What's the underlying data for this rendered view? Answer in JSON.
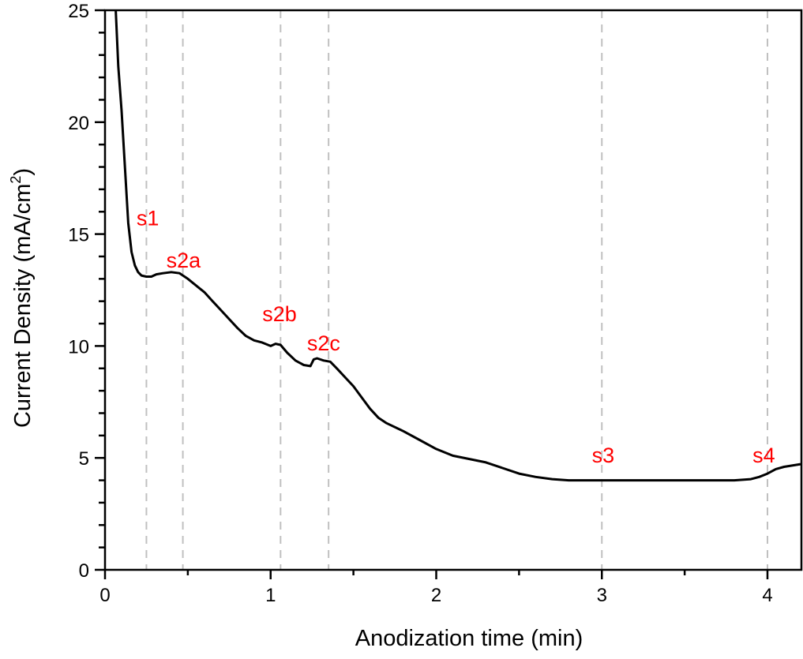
{
  "chart_data": {
    "type": "line",
    "title": "",
    "xlabel": "Anodization time (min)",
    "ylabel": "Current Density (mA/cm²)",
    "ylabel_main": "Current Density (mA/cm",
    "ylabel_sup": "2",
    "ylabel_close": ")",
    "xlim": [
      0,
      4.2
    ],
    "ylim": [
      0,
      25
    ],
    "xticks": [
      0,
      1,
      2,
      3,
      4
    ],
    "yticks": [
      0,
      5,
      10,
      15,
      20,
      25
    ],
    "x_minor_step": 0.5,
    "y_minor_step": 1,
    "grid": false,
    "legend": null,
    "line_color": "#000000",
    "annotation_color": "#ff0000",
    "reference_line_color": "#c0c0c0",
    "reference_lines_x": [
      0.25,
      0.47,
      1.06,
      1.35,
      3.0,
      4.0
    ],
    "annotations": [
      {
        "text": "s1",
        "x": 0.19,
        "y": 15.4
      },
      {
        "text": "s2a",
        "x": 0.37,
        "y": 13.5
      },
      {
        "text": "s2b",
        "x": 0.95,
        "y": 11.1
      },
      {
        "text": "s2c",
        "x": 1.22,
        "y": 9.8
      },
      {
        "text": "s3",
        "x": 2.94,
        "y": 4.8
      },
      {
        "text": "s4",
        "x": 3.91,
        "y": 4.8
      }
    ],
    "series": [
      {
        "name": "Current Density",
        "x": [
          0.065,
          0.08,
          0.1,
          0.12,
          0.14,
          0.16,
          0.18,
          0.2,
          0.22,
          0.25,
          0.28,
          0.31,
          0.35,
          0.4,
          0.45,
          0.5,
          0.55,
          0.6,
          0.65,
          0.7,
          0.75,
          0.8,
          0.85,
          0.9,
          0.95,
          1.0,
          1.03,
          1.06,
          1.1,
          1.15,
          1.2,
          1.24,
          1.26,
          1.28,
          1.32,
          1.36,
          1.4,
          1.45,
          1.5,
          1.55,
          1.6,
          1.65,
          1.7,
          1.8,
          1.9,
          2.0,
          2.1,
          2.2,
          2.3,
          2.4,
          2.5,
          2.6,
          2.7,
          2.8,
          2.9,
          3.0,
          3.2,
          3.4,
          3.6,
          3.8,
          3.9,
          3.95,
          4.0,
          4.05,
          4.1,
          4.2
        ],
        "y": [
          25.0,
          22.5,
          20.5,
          18.0,
          15.5,
          14.2,
          13.6,
          13.3,
          13.15,
          13.1,
          13.1,
          13.2,
          13.25,
          13.3,
          13.25,
          13.0,
          12.7,
          12.4,
          12.0,
          11.6,
          11.2,
          10.8,
          10.45,
          10.25,
          10.15,
          10.0,
          10.1,
          10.05,
          9.7,
          9.35,
          9.15,
          9.1,
          9.4,
          9.45,
          9.35,
          9.3,
          9.0,
          8.6,
          8.2,
          7.7,
          7.2,
          6.8,
          6.55,
          6.2,
          5.8,
          5.4,
          5.1,
          4.95,
          4.8,
          4.55,
          4.3,
          4.15,
          4.05,
          4.0,
          4.0,
          4.0,
          4.0,
          4.0,
          4.0,
          4.0,
          4.05,
          4.15,
          4.3,
          4.5,
          4.6,
          4.72
        ]
      }
    ]
  }
}
